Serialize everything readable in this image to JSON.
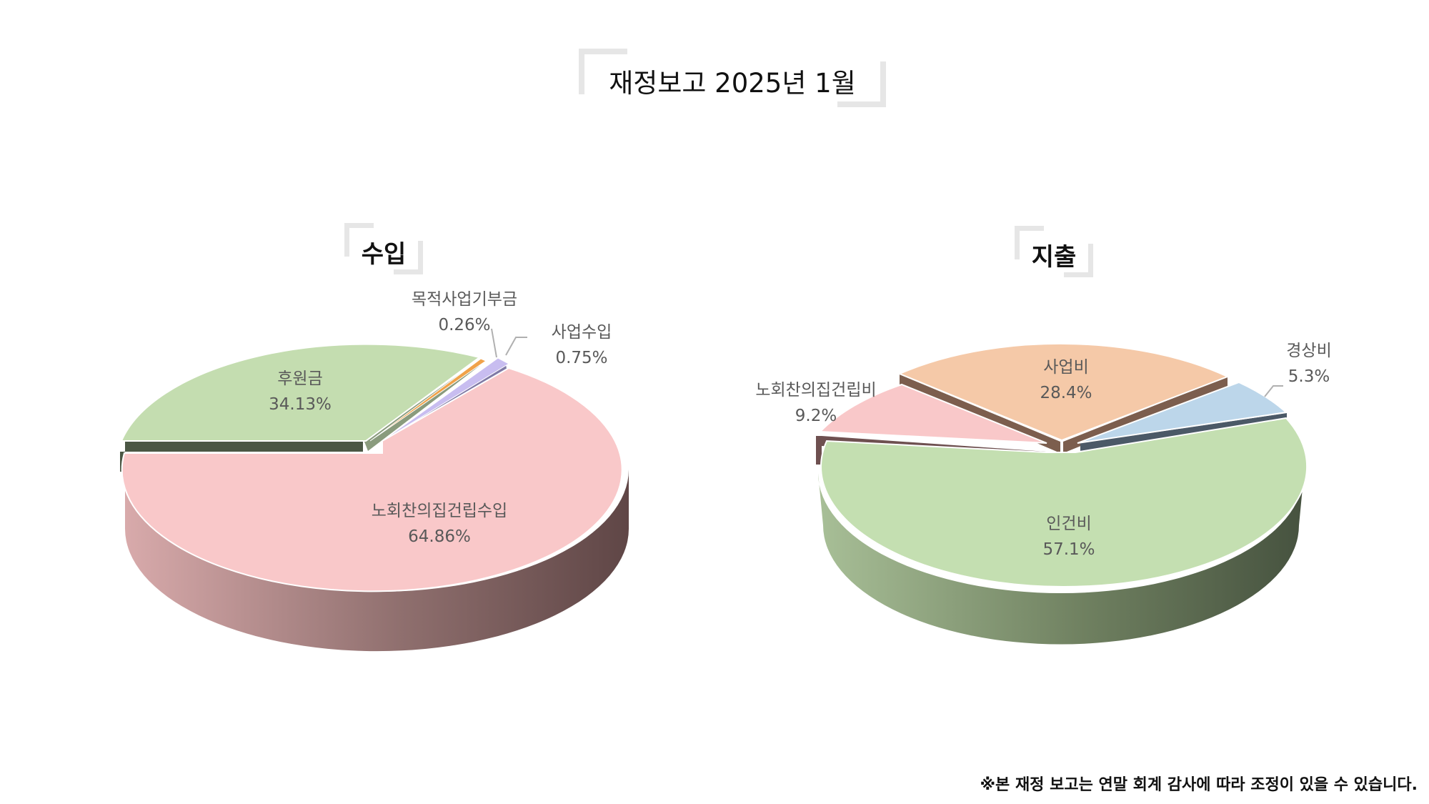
{
  "title": "재정보고 2025년 1월",
  "footnote": "※본 재정 보고는 연말 회계 감사에 따라 조정이 있을 수 있습니다.",
  "chart_data": [
    {
      "type": "pie",
      "title": "수입",
      "categories": [
        "노회찬의집건립수입",
        "후원금",
        "목적사업기부금",
        "사업수입"
      ],
      "values": [
        64.86,
        34.13,
        0.26,
        0.75
      ],
      "labels": [
        "64.86%",
        "34.13%",
        "0.26%",
        "0.75%"
      ],
      "colors": [
        "#f9c8c9",
        "#c4ddb0",
        "#f0a24a",
        "#c8bdf0"
      ],
      "side_colors": [
        "#6b4f4f",
        "#4d5a45",
        "#9a5e20",
        "#7f7aa8"
      ],
      "side_light_colors": [
        "#d6a8aa",
        "#6b7d5c",
        "#c27a30",
        "#9d96c8"
      ]
    },
    {
      "type": "pie",
      "title": "지출",
      "categories": [
        "인건비",
        "노회찬의집건립비",
        "사업비",
        "경상비"
      ],
      "values": [
        57.1,
        9.2,
        28.4,
        5.3
      ],
      "labels": [
        "57.1%",
        "9.2%",
        "28.4%",
        "5.3%"
      ],
      "colors": [
        "#c4dfb1",
        "#f9c8c9",
        "#f5c9a8",
        "#bcd6ea"
      ],
      "side_colors": [
        "#4d5a45",
        "#6e5050",
        "#876a5a",
        "#4a5866"
      ],
      "side_light_colors": [
        "#a2b892",
        "#8a6363",
        "#9a7a68",
        "#5f7385"
      ]
    }
  ]
}
